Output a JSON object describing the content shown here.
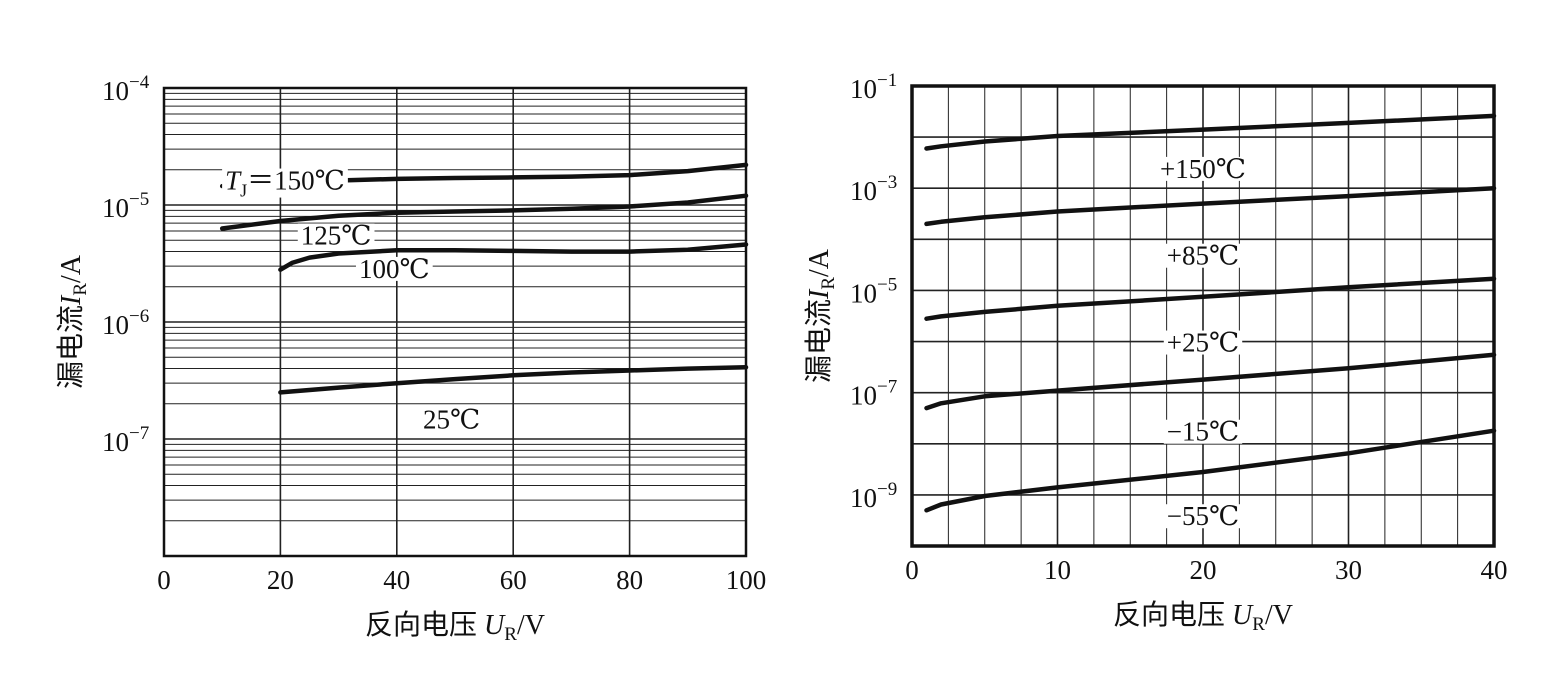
{
  "chart_data": [
    {
      "type": "line",
      "title": "",
      "xlabel": "反向电压 U_R/V",
      "ylabel": "漏电流I_R/A",
      "xlabel_parts": [
        "反向电压 ",
        "U",
        "R",
        "/V"
      ],
      "ylabel_parts": [
        "漏电流",
        "I",
        "R",
        "/A"
      ],
      "y_scale": "log",
      "xlim": [
        0,
        100
      ],
      "ylim": [
        1e-08,
        0.0001
      ],
      "x_ticks": [
        0,
        20,
        40,
        60,
        80,
        100
      ],
      "x_tick_labels": [
        "0",
        "20",
        "40",
        "60",
        "80",
        "100"
      ],
      "y_ticks": [
        0.0001,
        1e-05,
        1e-06,
        1e-07
      ],
      "y_tick_labels": [
        {
          "base": "10",
          "exp": "−4"
        },
        {
          "base": "10",
          "exp": "−5"
        },
        {
          "base": "10",
          "exp": "−6"
        },
        {
          "base": "10",
          "exp": "−7"
        }
      ],
      "grid": true,
      "series": [
        {
          "label_parts": [
            "T",
            "J",
            "＝150℃"
          ],
          "x": [
            10,
            20,
            30,
            40,
            50,
            60,
            70,
            80,
            90,
            100
          ],
          "y": [
            1.45e-05,
            1.55e-05,
            1.62e-05,
            1.67e-05,
            1.7e-05,
            1.72e-05,
            1.75e-05,
            1.8e-05,
            1.95e-05,
            2.2e-05
          ],
          "label_at": [
            10.5,
            1.65e-05
          ]
        },
        {
          "label": "125℃",
          "x": [
            10,
            20,
            30,
            40,
            50,
            60,
            70,
            80,
            90,
            100
          ],
          "y": [
            6.3e-06,
            7.3e-06,
            8.1e-06,
            8.6e-06,
            8.8e-06,
            9e-06,
            9.3e-06,
            9.7e-06,
            1.05e-05,
            1.2e-05
          ],
          "label_at": [
            23.5,
            5.6e-06
          ]
        },
        {
          "label": "100℃",
          "x": [
            20,
            22,
            25,
            30,
            40,
            50,
            60,
            70,
            80,
            90,
            100
          ],
          "y": [
            2.8e-06,
            3.2e-06,
            3.55e-06,
            3.85e-06,
            4.1e-06,
            4.1e-06,
            4.05e-06,
            4e-06,
            4e-06,
            4.15e-06,
            4.6e-06
          ],
          "label_at": [
            33.5,
            2.9e-06
          ]
        },
        {
          "label": "25℃",
          "x": [
            20,
            30,
            40,
            50,
            60,
            70,
            80,
            90,
            100
          ],
          "y": [
            2.5e-07,
            2.75e-07,
            3e-07,
            3.25e-07,
            3.5e-07,
            3.7e-07,
            3.85e-07,
            4e-07,
            4.1e-07
          ],
          "label_at": [
            44.5,
            1.5e-07
          ]
        }
      ]
    },
    {
      "type": "line",
      "title": "",
      "xlabel": "反向电压 U_R/V",
      "ylabel": "漏电流I_R/A",
      "xlabel_parts": [
        "反向电压 ",
        "U",
        "R",
        "/V"
      ],
      "ylabel_parts": [
        "漏电流",
        "I",
        "R",
        "/A"
      ],
      "y_scale": "log",
      "xlim": [
        0,
        40
      ],
      "ylim": [
        1e-10,
        0.1
      ],
      "x_ticks": [
        0,
        10,
        20,
        30,
        40
      ],
      "x_tick_labels": [
        "0",
        "10",
        "20",
        "30",
        "40"
      ],
      "y_ticks": [
        0.1,
        0.001,
        1e-05,
        1e-07,
        1e-09
      ],
      "y_tick_labels": [
        {
          "base": "10",
          "exp": "−1"
        },
        {
          "base": "10",
          "exp": "−3"
        },
        {
          "base": "10",
          "exp": "−5"
        },
        {
          "base": "10",
          "exp": "−7"
        },
        {
          "base": "10",
          "exp": "−9"
        }
      ],
      "grid": true,
      "series": [
        {
          "label": "+150℃",
          "x": [
            1,
            2,
            5,
            10,
            20,
            30,
            40
          ],
          "y": [
            0.006,
            0.0066,
            0.0082,
            0.0105,
            0.014,
            0.019,
            0.026
          ],
          "label_at": [
            20,
            0.0025
          ]
        },
        {
          "label": "+85℃",
          "x": [
            1,
            2,
            5,
            10,
            20,
            30,
            40
          ],
          "y": [
            0.0002,
            0.00022,
            0.00027,
            0.00035,
            0.0005,
            0.0007,
            0.001
          ],
          "label_at": [
            20,
            5e-05
          ]
        },
        {
          "label": "+25℃",
          "x": [
            1,
            2,
            5,
            10,
            20,
            30,
            40
          ],
          "y": [
            2.8e-06,
            3.1e-06,
            3.8e-06,
            5e-06,
            7.5e-06,
            1.15e-05,
            1.7e-05
          ],
          "label_at": [
            20,
            1e-06
          ]
        },
        {
          "label": "−15℃",
          "x": [
            1,
            2,
            5,
            10,
            20,
            30,
            40
          ],
          "y": [
            5e-08,
            6.2e-08,
            8.5e-08,
            1.1e-07,
            1.8e-07,
            3e-07,
            5.5e-07
          ],
          "label_at": [
            20,
            1.8e-08
          ]
        },
        {
          "label": "−55℃",
          "x": [
            1,
            2,
            5,
            10,
            20,
            30,
            40
          ],
          "y": [
            5e-10,
            6.5e-10,
            9.5e-10,
            1.4e-09,
            2.8e-09,
            6.5e-09,
            1.8e-08
          ],
          "label_at": [
            20,
            4e-10
          ]
        }
      ]
    }
  ]
}
